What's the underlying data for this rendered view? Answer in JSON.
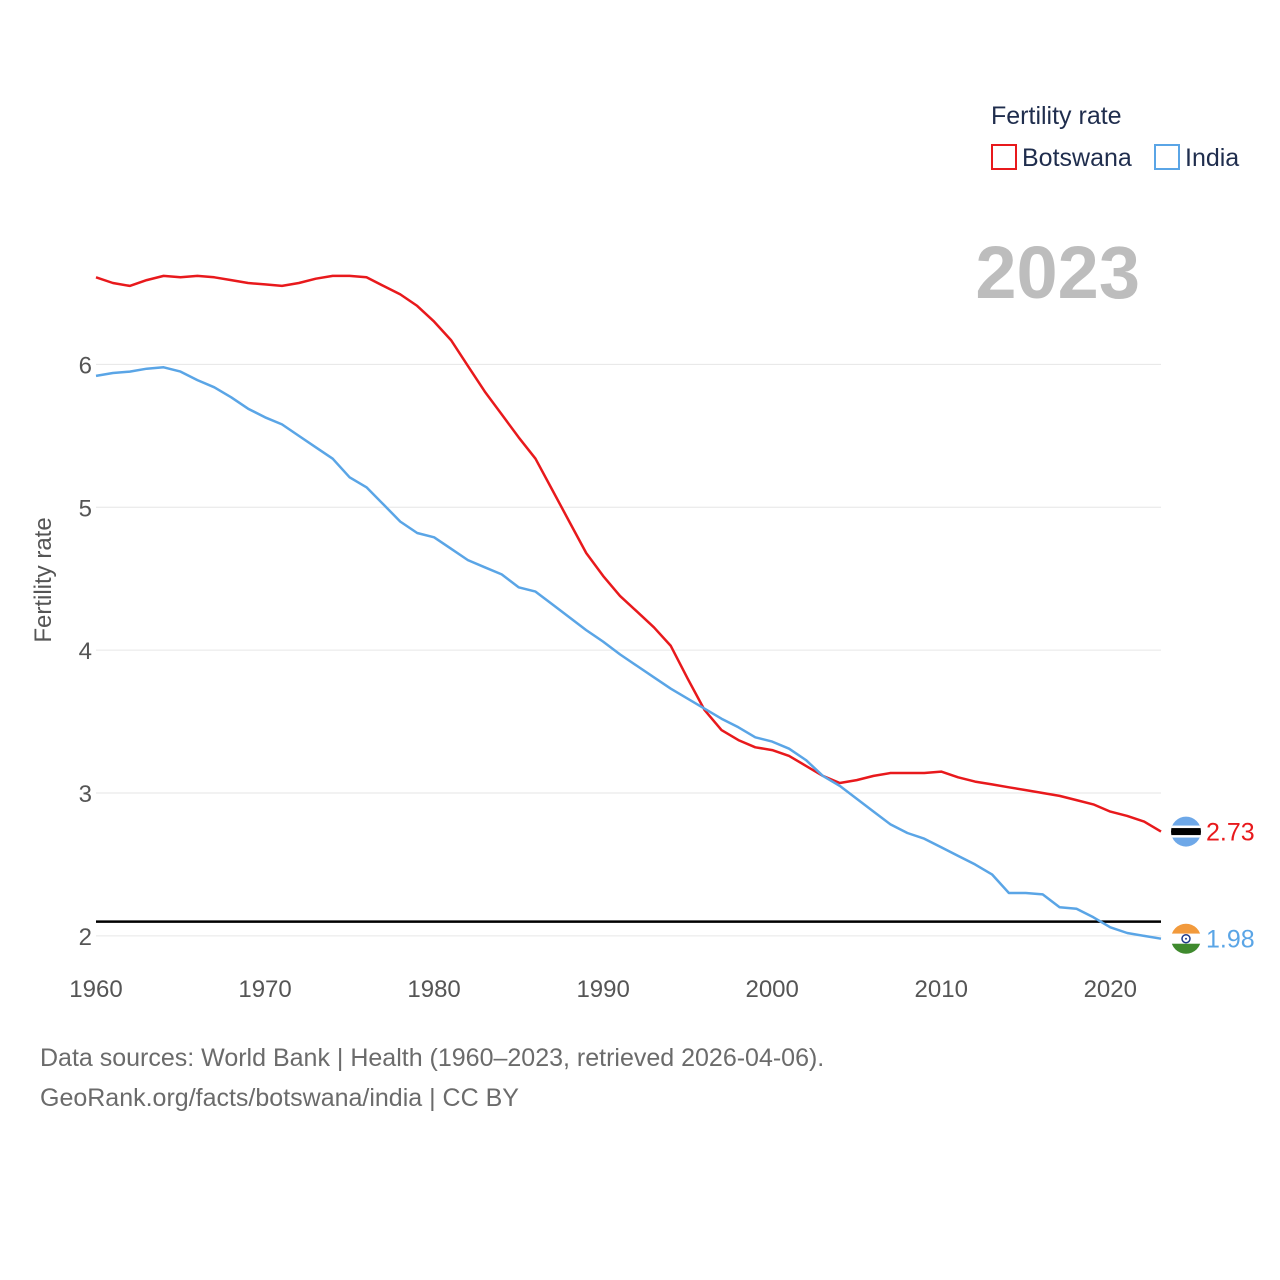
{
  "colors": {
    "botswana": "#e8191c",
    "india": "#5aa5e6",
    "grid": "#e6e6e6",
    "reference": "#000000"
  },
  "year_label": "2023",
  "end_labels": {
    "botswana": "2.73",
    "india": "1.98"
  },
  "source": {
    "line1": "Data sources: World Bank | Health (1960–2023, retrieved 2026-04-06).",
    "line2": "GeoRank.org/facts/botswana/india | CC BY"
  },
  "chart_data": {
    "type": "line",
    "title": "",
    "legend_title": "Fertility rate",
    "legend_position": "top-right",
    "xlabel": "",
    "ylabel": "Fertility rate",
    "xlim": [
      1960,
      2023
    ],
    "ylim": [
      1.6,
      7.2
    ],
    "x_ticks": [
      1960,
      1970,
      1980,
      1990,
      2000,
      2010,
      2020
    ],
    "y_ticks": [
      2,
      3,
      4,
      5,
      6
    ],
    "reference_line": 2.1,
    "x": [
      1960,
      1961,
      1962,
      1963,
      1964,
      1965,
      1966,
      1967,
      1968,
      1969,
      1970,
      1971,
      1972,
      1973,
      1974,
      1975,
      1976,
      1977,
      1978,
      1979,
      1980,
      1981,
      1982,
      1983,
      1984,
      1985,
      1986,
      1987,
      1988,
      1989,
      1990,
      1991,
      1992,
      1993,
      1994,
      1995,
      1996,
      1997,
      1998,
      1999,
      2000,
      2001,
      2002,
      2003,
      2004,
      2005,
      2006,
      2007,
      2008,
      2009,
      2010,
      2011,
      2012,
      2013,
      2014,
      2015,
      2016,
      2017,
      2018,
      2019,
      2020,
      2021,
      2022,
      2023
    ],
    "series": [
      {
        "name": "Botswana",
        "values": [
          6.61,
          6.57,
          6.55,
          6.59,
          6.62,
          6.61,
          6.62,
          6.61,
          6.59,
          6.57,
          6.56,
          6.55,
          6.57,
          6.6,
          6.62,
          6.62,
          6.61,
          6.55,
          6.49,
          6.41,
          6.3,
          6.17,
          5.99,
          5.81,
          5.65,
          5.49,
          5.34,
          5.12,
          4.9,
          4.68,
          4.52,
          4.38,
          4.27,
          4.16,
          4.03,
          3.8,
          3.58,
          3.44,
          3.37,
          3.32,
          3.3,
          3.26,
          3.19,
          3.12,
          3.07,
          3.09,
          3.12,
          3.14,
          3.14,
          3.14,
          3.15,
          3.11,
          3.08,
          3.06,
          3.04,
          3.02,
          3.0,
          2.98,
          2.95,
          2.92,
          2.87,
          2.84,
          2.8,
          2.73
        ]
      },
      {
        "name": "India",
        "values": [
          5.92,
          5.94,
          5.95,
          5.97,
          5.98,
          5.95,
          5.89,
          5.84,
          5.77,
          5.69,
          5.63,
          5.58,
          5.5,
          5.42,
          5.34,
          5.21,
          5.14,
          5.02,
          4.9,
          4.82,
          4.79,
          4.71,
          4.63,
          4.58,
          4.53,
          4.44,
          4.41,
          4.32,
          4.23,
          4.14,
          4.06,
          3.97,
          3.89,
          3.81,
          3.73,
          3.66,
          3.59,
          3.52,
          3.46,
          3.39,
          3.36,
          3.31,
          3.23,
          3.12,
          3.05,
          2.96,
          2.87,
          2.78,
          2.72,
          2.68,
          2.62,
          2.56,
          2.5,
          2.43,
          2.3,
          2.3,
          2.29,
          2.2,
          2.19,
          2.13,
          2.06,
          2.02,
          2.0,
          1.98
        ]
      }
    ]
  }
}
